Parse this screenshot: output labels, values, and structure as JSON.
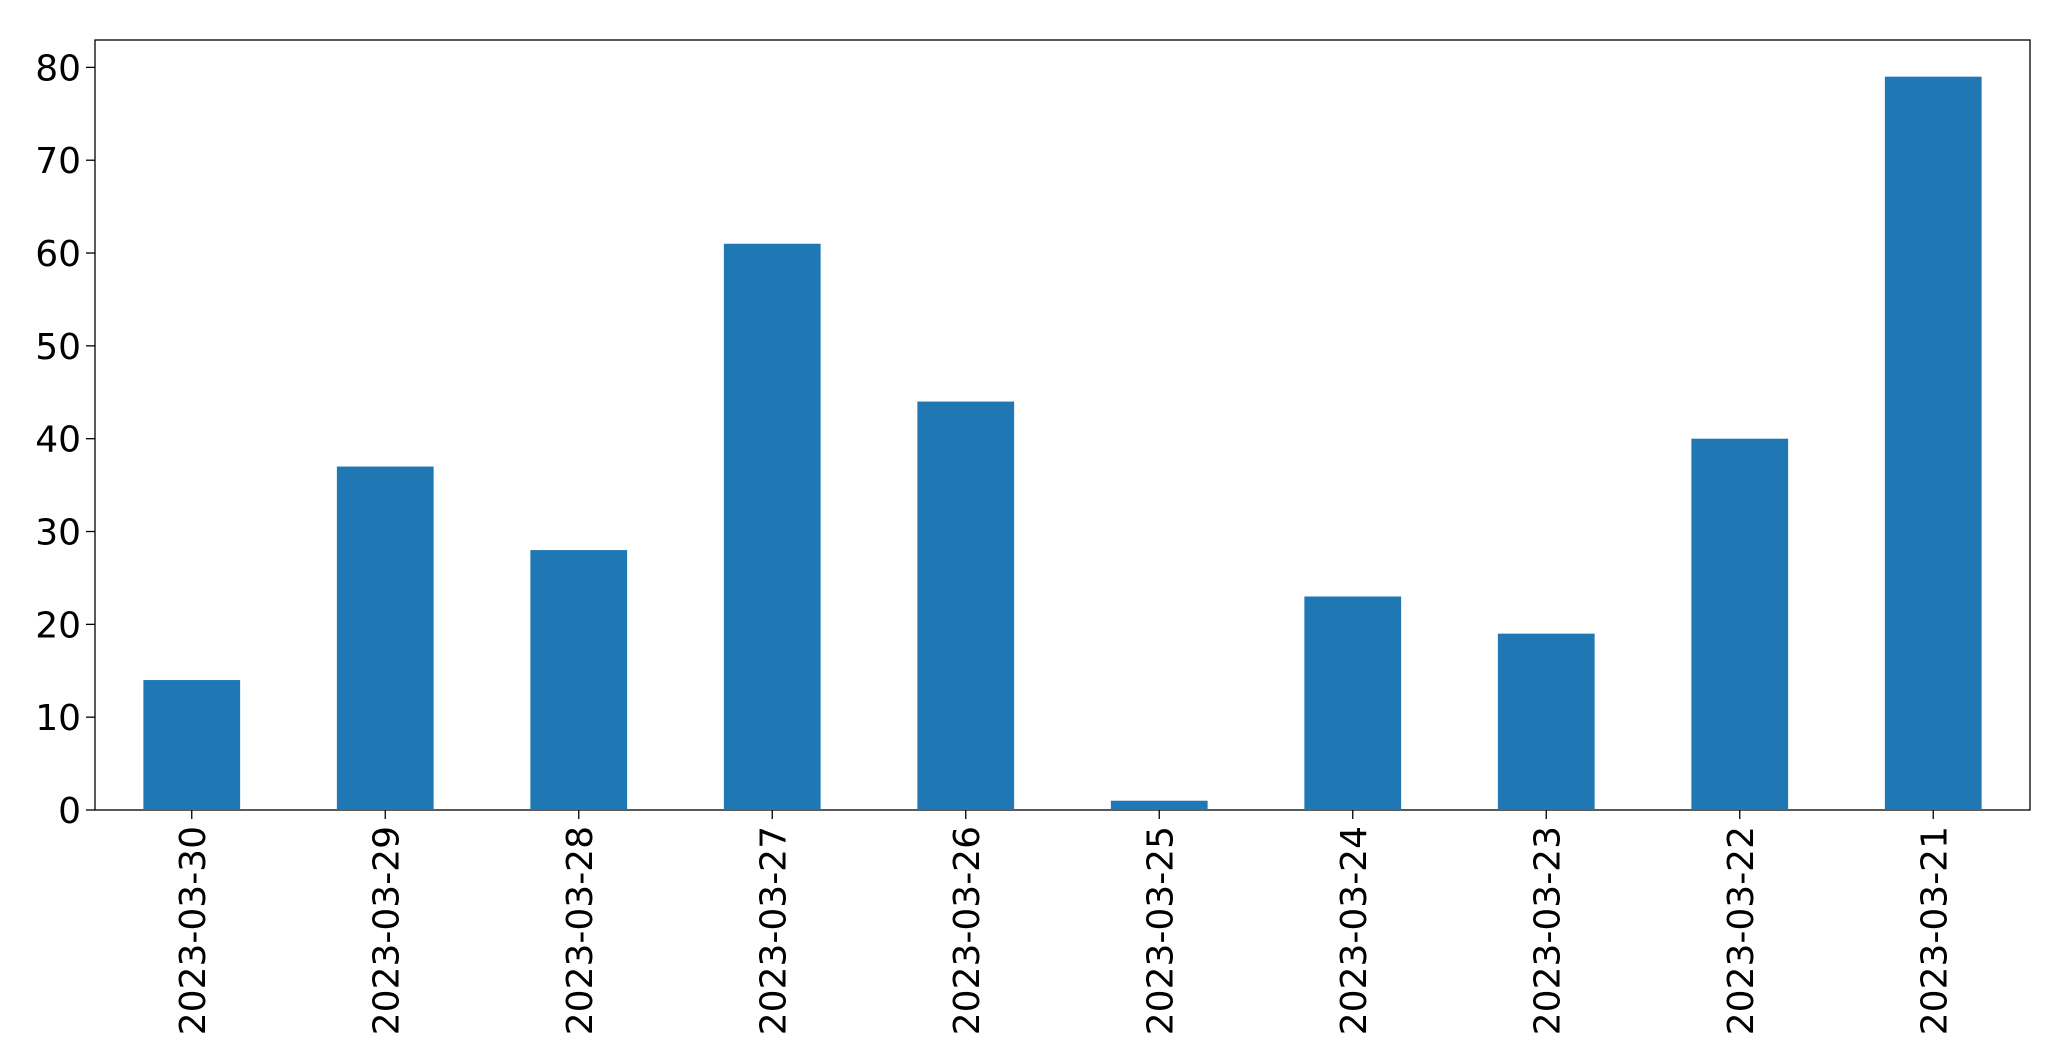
{
  "chart_data": {
    "type": "bar",
    "categories": [
      "2023-03-30",
      "2023-03-29",
      "2023-03-28",
      "2023-03-27",
      "2023-03-26",
      "2023-03-25",
      "2023-03-24",
      "2023-03-23",
      "2023-03-22",
      "2023-03-21"
    ],
    "values": [
      14,
      37,
      28,
      61,
      44,
      1,
      23,
      19,
      40,
      79
    ],
    "color": "#1f77b4",
    "ylim": [
      0,
      82.95
    ],
    "yticks": [
      0,
      10,
      20,
      30,
      40,
      50,
      60,
      70,
      80
    ],
    "grid": false
  }
}
